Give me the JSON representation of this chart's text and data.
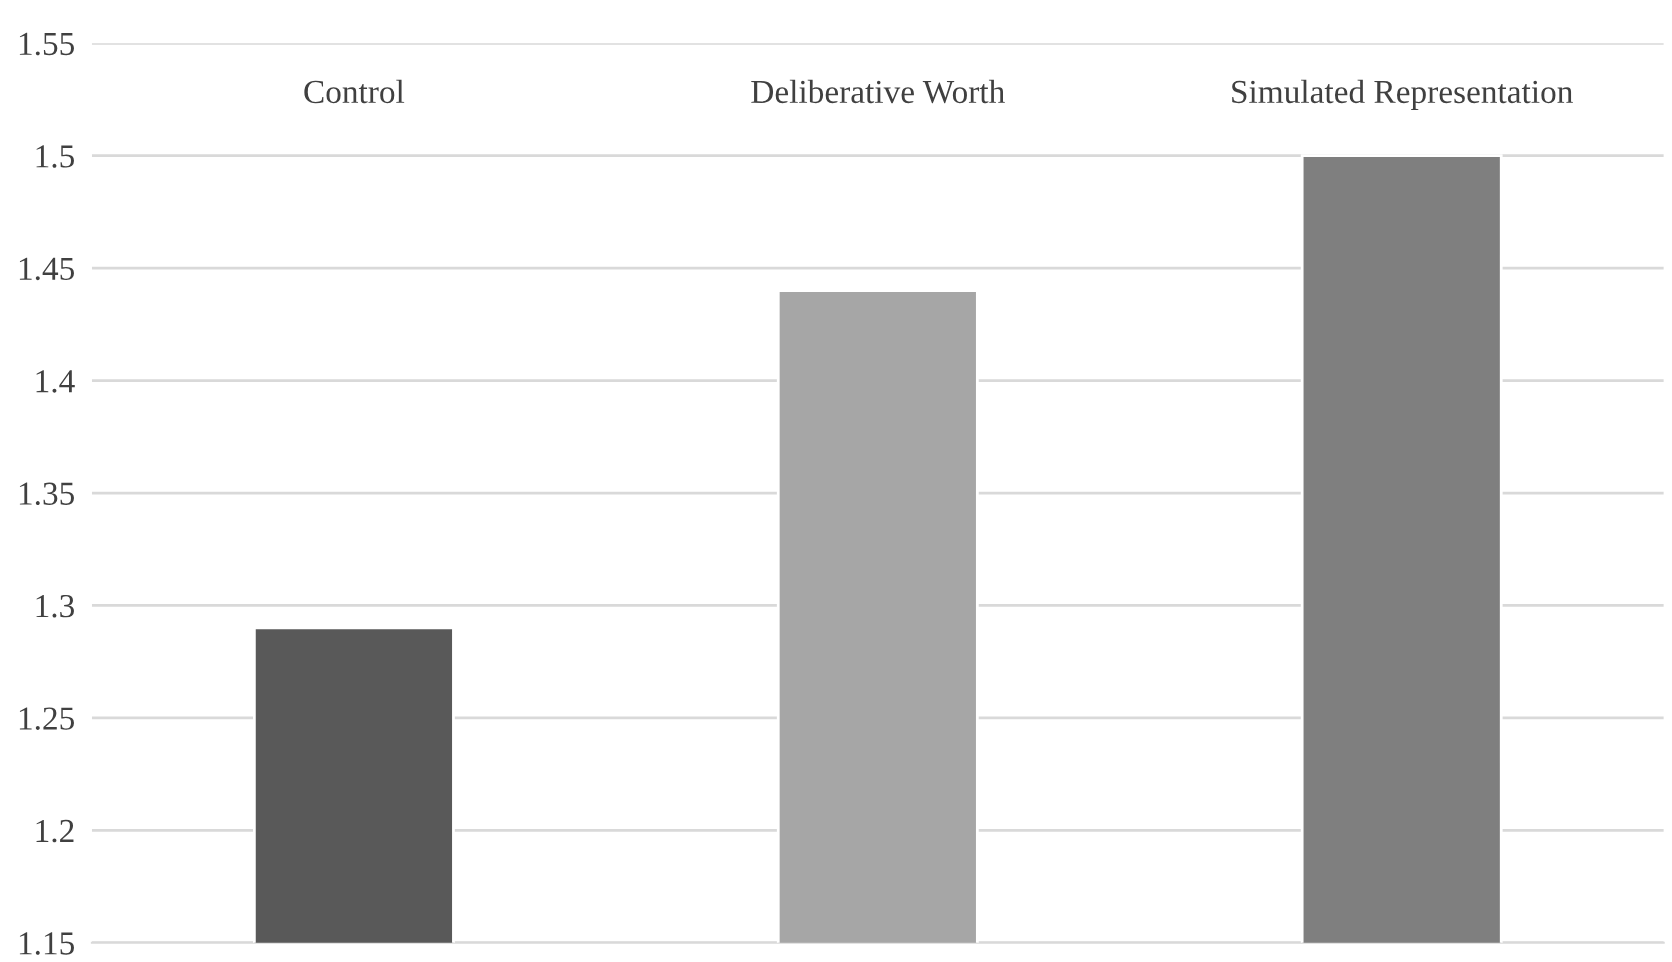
{
  "chart_data": {
    "type": "bar",
    "categories": [
      "Control",
      "Deliberative Worth",
      "Simulated Representation"
    ],
    "values": [
      1.29,
      1.44,
      1.5
    ],
    "colors": [
      "#595959",
      "#a6a6a6",
      "#7f7f7f"
    ],
    "ylim": [
      1.15,
      1.55
    ],
    "yticks": [
      1.15,
      1.2,
      1.25,
      1.3,
      1.35,
      1.4,
      1.45,
      1.5,
      1.55
    ],
    "grid": "y",
    "legend": false
  }
}
